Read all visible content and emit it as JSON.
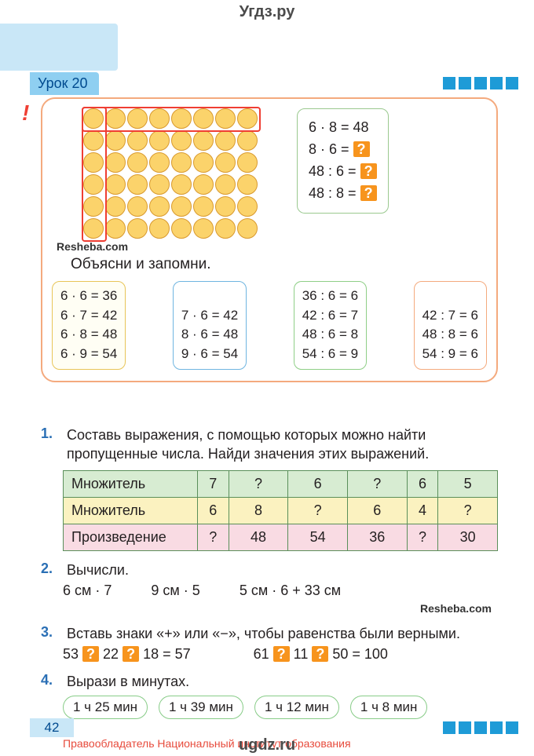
{
  "watermark_top": "Угдз.ру",
  "watermark_bottom": "ugdz.ru",
  "lesson_label": "Урок 20",
  "page_number": "42",
  "copyright": "Правообладатель Национальный институт образования",
  "colors": {
    "accent_blue": "#1e9bd7",
    "header_bg": "#c9e7f7",
    "tab_bg": "#8fcff1",
    "border_orange": "#f4aa7e",
    "circle_fill": "#fbd36b",
    "circle_border": "#d99a2f",
    "highlight_red": "#ef3e33",
    "qmark_bg": "#f7941d",
    "task_num": "#2a6fb5"
  },
  "circle_grid": {
    "rows": 6,
    "cols": 8,
    "highlight_row": 0,
    "highlight_col": 0
  },
  "top_equations": [
    "6 · 8 = 48",
    "8 · 6 = ?",
    "48 : 6 = ?",
    "48 : 8 = ?"
  ],
  "resheba": "Resheba.com",
  "explain": "Объясни и запомни.",
  "math_boxes": [
    {
      "style": "yellow",
      "lines": [
        "6 · 6 = 36",
        "6 · 7 = 42",
        "6 · 8 = 48",
        "6 · 9 = 54"
      ]
    },
    {
      "style": "blue",
      "lines": [
        "7 · 6 = 42",
        "8 · 6 = 48",
        "9 · 6 = 54"
      ]
    },
    {
      "style": "green",
      "lines": [
        "36 : 6 = 6",
        "42 : 6 = 7",
        "48 : 6 = 8",
        "54 : 6 = 9"
      ]
    },
    {
      "style": "orange",
      "lines": [
        "42 : 7 = 6",
        "48 : 8 = 6",
        "54 : 9 = 6"
      ]
    }
  ],
  "tasks": {
    "t1": {
      "num": "1.",
      "text": "Составь выражения, с помощью которых можно найти пропущенные числа. Найди значения этих выражений.",
      "table": {
        "rows": [
          {
            "label": "Множитель",
            "cells": [
              "7",
              "?",
              "6",
              "?",
              "6",
              "5"
            ],
            "cls": "r-green"
          },
          {
            "label": "Множитель",
            "cells": [
              "6",
              "8",
              "?",
              "6",
              "4",
              "?"
            ],
            "cls": "r-yellow"
          },
          {
            "label": "Произведение",
            "cells": [
              "?",
              "48",
              "54",
              "36",
              "?",
              "30"
            ],
            "cls": "r-pink"
          }
        ]
      }
    },
    "t2": {
      "num": "2.",
      "text": "Вычисли.",
      "items": [
        "6 см · 7",
        "9 см · 5",
        "5 см · 6 + 33 см"
      ]
    },
    "t3": {
      "num": "3.",
      "text": "Вставь знаки «+» или «−», чтобы равенства были верными.",
      "eqs": [
        "53 ? 22 ? 18 = 57",
        "61 ? 11 ? 50 = 100"
      ]
    },
    "t4": {
      "num": "4.",
      "text": "Вырази в минутах.",
      "times": [
        "1 ч 25 мин",
        "1 ч 39 мин",
        "1 ч 12 мин",
        "1 ч 8 мин"
      ]
    }
  }
}
